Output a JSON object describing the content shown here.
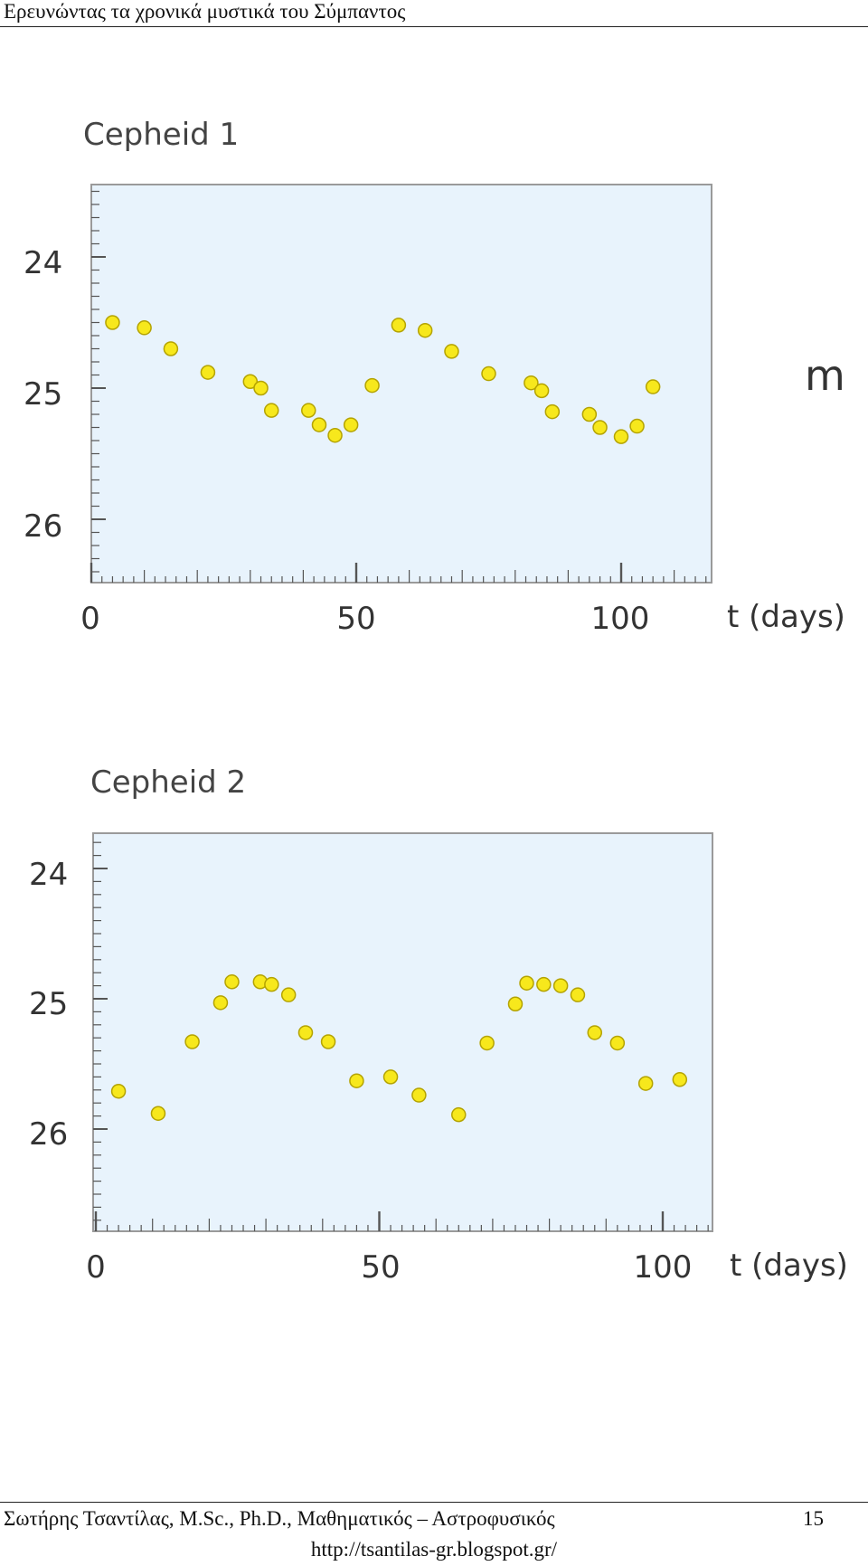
{
  "header": {
    "title": "Ερευνώντας τα χρονικά μυστικά του Σύμπαντος"
  },
  "footer": {
    "author": "Σωτήρης Τσαντίλας, M.Sc., Ph.D., Μαθηματικός – Αστροφυσικός",
    "page_number": "15",
    "url": "http://tsantilas-gr.blogspot.gr/"
  },
  "colors": {
    "panel_bg": "#e8f3fc",
    "point_fill": "#f7e81c",
    "point_stroke": "#b4a300",
    "axis": "#555555"
  },
  "chart_data": [
    {
      "type": "scatter",
      "title": "Cepheid 1",
      "xlabel": "t (days)",
      "ylabel": "m",
      "xlim": [
        0,
        117
      ],
      "ylim": [
        24.5,
        27.5
      ],
      "y_inverted": true,
      "x_ticks": [
        "0",
        "50",
        "100"
      ],
      "y_ticks": [
        "24",
        "25",
        "26"
      ],
      "grid": false,
      "points": [
        [
          4,
          24.5
        ],
        [
          10,
          24.54
        ],
        [
          15,
          24.7
        ],
        [
          22,
          24.88
        ],
        [
          30,
          24.95
        ],
        [
          32,
          25.0
        ],
        [
          34,
          25.17
        ],
        [
          41,
          25.17
        ],
        [
          43,
          25.28
        ],
        [
          46,
          25.36
        ],
        [
          49,
          25.28
        ],
        [
          53,
          24.98
        ],
        [
          58,
          24.52
        ],
        [
          63,
          24.56
        ],
        [
          68,
          24.72
        ],
        [
          75,
          24.89
        ],
        [
          83,
          24.96
        ],
        [
          85,
          25.02
        ],
        [
          87,
          25.18
        ],
        [
          94,
          25.2
        ],
        [
          96,
          25.3
        ],
        [
          100,
          25.37
        ],
        [
          103,
          25.29
        ],
        [
          106,
          24.99
        ]
      ]
    },
    {
      "type": "scatter",
      "title": "Cepheid 2",
      "xlabel": "t (days)",
      "ylim": [
        23.8,
        26.8
      ],
      "y_inverted": true,
      "xlim": [
        0,
        117
      ],
      "x_ticks": [
        "0",
        "50",
        "100"
      ],
      "y_ticks": [
        "24",
        "25",
        "26"
      ],
      "grid": false,
      "points": [
        [
          4,
          25.71
        ],
        [
          11,
          25.88
        ],
        [
          17,
          25.33
        ],
        [
          22,
          25.03
        ],
        [
          24,
          24.87
        ],
        [
          29,
          24.87
        ],
        [
          31,
          24.89
        ],
        [
          34,
          24.97
        ],
        [
          37,
          25.26
        ],
        [
          41,
          25.33
        ],
        [
          46,
          25.63
        ],
        [
          52,
          25.6
        ],
        [
          57,
          25.74
        ],
        [
          64,
          25.89
        ],
        [
          69,
          25.34
        ],
        [
          74,
          25.04
        ],
        [
          76,
          24.88
        ],
        [
          79,
          24.89
        ],
        [
          82,
          24.9
        ],
        [
          85,
          24.97
        ],
        [
          88,
          25.26
        ],
        [
          92,
          25.34
        ],
        [
          97,
          25.65
        ],
        [
          103,
          25.62
        ]
      ]
    }
  ]
}
